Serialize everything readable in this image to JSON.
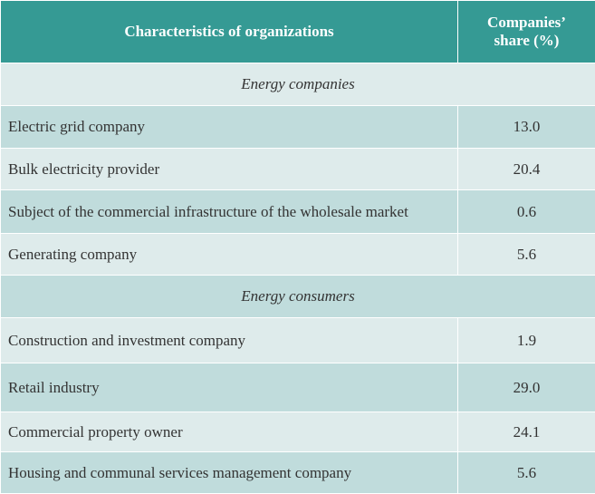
{
  "header": {
    "col1": "Characteristics of organizations",
    "col2_line1": "Companies’",
    "col2_line2": "share (%)"
  },
  "sections": [
    {
      "title": "Energy companies",
      "rows": [
        {
          "name": "Electric grid company",
          "share": "13.0"
        },
        {
          "name": "Bulk electricity provider",
          "share": "20.4"
        },
        {
          "name": "Subject of the commercial infrastructure of the wholesale market",
          "share": "0.6"
        },
        {
          "name": "Generating company",
          "share": "5.6"
        }
      ]
    },
    {
      "title": "Energy consumers",
      "rows": [
        {
          "name": "Construction and investment company",
          "share": "1.9"
        },
        {
          "name": "Retail industry",
          "share": "29.0"
        },
        {
          "name": "Commercial property owner",
          "share": "24.1"
        },
        {
          "name": "Housing and communal services management company",
          "share": "5.6"
        }
      ]
    }
  ],
  "colors": {
    "header_bg": "#359a94",
    "row_light": "#deebeb",
    "row_dark": "#c0dcdc"
  }
}
